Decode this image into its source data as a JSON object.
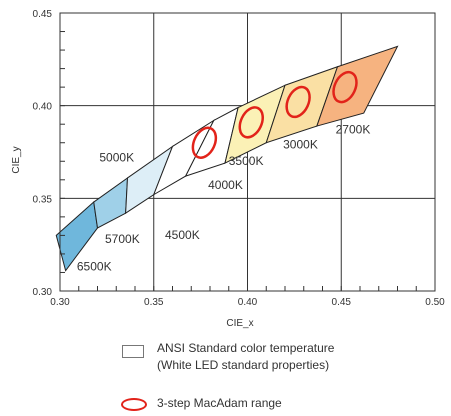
{
  "chart_data": {
    "type": "scatter",
    "title": "",
    "xlabel": "CIE_x",
    "ylabel": "CIE_y",
    "xlim": [
      0.3,
      0.5
    ],
    "ylim": [
      0.3,
      0.45
    ],
    "xticks": [
      "0.30",
      "0.35",
      "0.40",
      "0.45",
      "0.50"
    ],
    "yticks": [
      "0.30",
      "0.35",
      "0.40",
      "0.45"
    ],
    "grid": true,
    "bins": [
      {
        "label": "6500K",
        "fill": "#6fb7dc",
        "quad": [
          [
            0.298,
            0.33
          ],
          [
            0.318,
            0.348
          ],
          [
            0.32,
            0.334
          ],
          [
            0.303,
            0.311
          ]
        ]
      },
      {
        "label": "5700K",
        "fill": "#9fd0e8",
        "quad": [
          [
            0.318,
            0.348
          ],
          [
            0.336,
            0.361
          ],
          [
            0.335,
            0.342
          ],
          [
            0.32,
            0.334
          ]
        ]
      },
      {
        "label": "5000K",
        "fill": "#ddeef7",
        "quad": [
          [
            0.336,
            0.361
          ],
          [
            0.36,
            0.378
          ],
          [
            0.35,
            0.352
          ],
          [
            0.335,
            0.342
          ]
        ]
      },
      {
        "label": "4500K",
        "fill": "#ffffff",
        "quad": [
          [
            0.36,
            0.378
          ],
          [
            0.382,
            0.392
          ],
          [
            0.367,
            0.362
          ],
          [
            0.35,
            0.352
          ]
        ]
      },
      {
        "label": "4000K",
        "fill": "#ffffff",
        "quad": [
          [
            0.382,
            0.392
          ],
          [
            0.395,
            0.399
          ],
          [
            0.388,
            0.369
          ],
          [
            0.367,
            0.362
          ]
        ]
      },
      {
        "label": "3500K",
        "fill": "#fbf1b6",
        "quad": [
          [
            0.395,
            0.399
          ],
          [
            0.42,
            0.411
          ],
          [
            0.41,
            0.38
          ],
          [
            0.388,
            0.369
          ]
        ]
      },
      {
        "label": "3000K",
        "fill": "#fae0a4",
        "quad": [
          [
            0.42,
            0.411
          ],
          [
            0.448,
            0.421
          ],
          [
            0.437,
            0.389
          ],
          [
            0.41,
            0.38
          ]
        ]
      },
      {
        "label": "2700K",
        "fill": "#f6b380",
        "quad": [
          [
            0.448,
            0.421
          ],
          [
            0.48,
            0.432
          ],
          [
            0.462,
            0.396
          ],
          [
            0.437,
            0.389
          ]
        ]
      }
    ],
    "macadam_ellipses": [
      {
        "center": [
          0.377,
          0.38
        ],
        "rx": 0.0055,
        "ry": 0.0085,
        "rotation_deg": 25
      },
      {
        "center": [
          0.402,
          0.391
        ],
        "rx": 0.0055,
        "ry": 0.0085,
        "rotation_deg": 25
      },
      {
        "center": [
          0.427,
          0.402
        ],
        "rx": 0.0055,
        "ry": 0.0085,
        "rotation_deg": 25
      },
      {
        "center": [
          0.452,
          0.41
        ],
        "rx": 0.0055,
        "ry": 0.0085,
        "rotation_deg": 25
      }
    ],
    "ellipse_color": "#e2231a",
    "legend": {
      "standard_line1": "ANSI Standard color temperature",
      "standard_line2": "(White LED standard properties)",
      "macadam": "3-step MacAdam range"
    }
  }
}
